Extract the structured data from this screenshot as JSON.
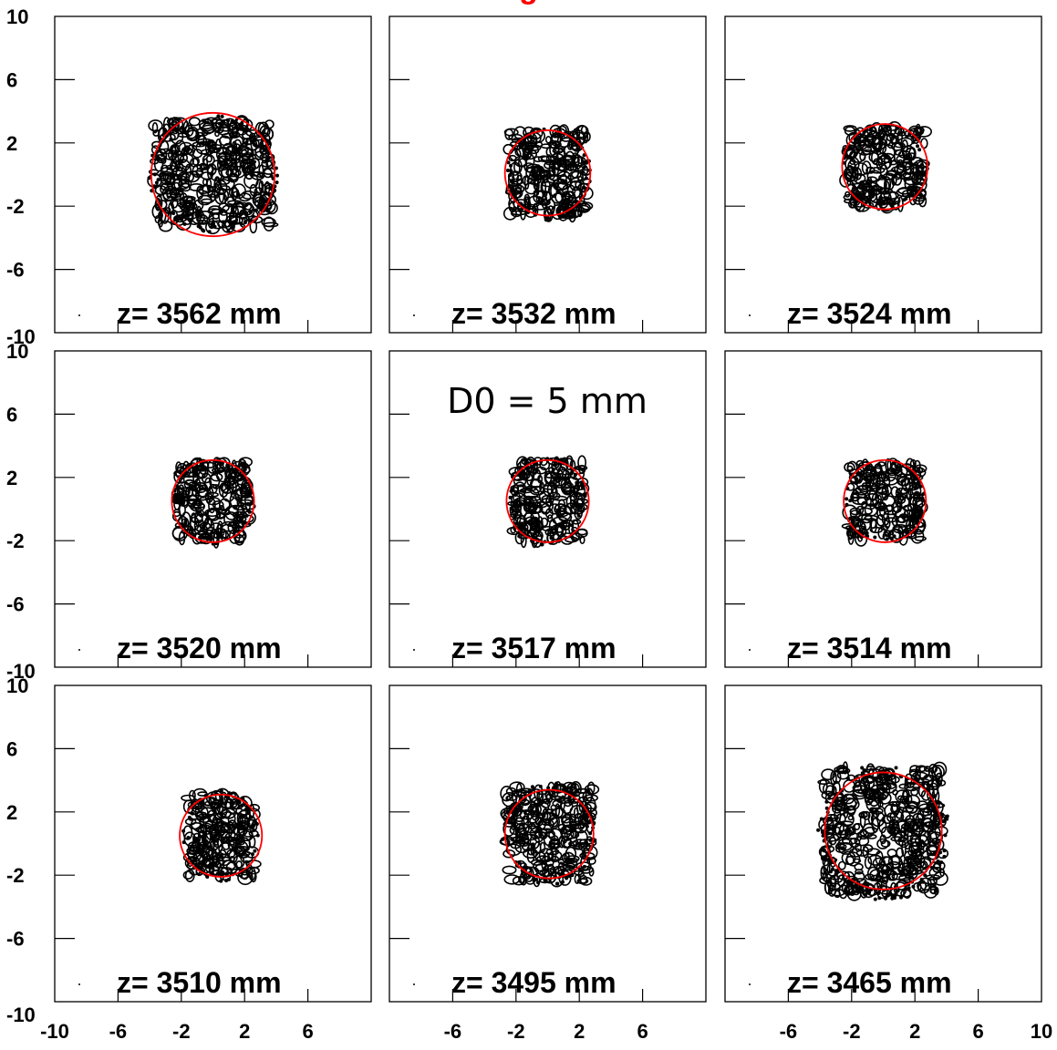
{
  "figure": {
    "title_visible_fragment": "g",
    "annotation": "D0 = 5 mm",
    "colors": {
      "contour": "#000000",
      "circle": "#ff0000",
      "title": "#ff0000",
      "frame": "#000000",
      "background": "#ffffff"
    }
  },
  "chart_data": {
    "type": "contour-grid",
    "grid": {
      "rows": 3,
      "cols": 3
    },
    "xlim": [
      -10,
      10
    ],
    "ylim": [
      -10,
      10
    ],
    "x_tick_labels": [
      "-10",
      "-6",
      "-2",
      "2",
      "6",
      "10"
    ],
    "y_tick_labels": [
      "10",
      "6",
      "2",
      "-2",
      "-6",
      "-10"
    ],
    "panels": [
      {
        "label": "z= 3562 mm",
        "circle": {
          "cx": 0.0,
          "cy": 0.0,
          "r": 3.9
        },
        "blob": {
          "w": 7.5,
          "h": 6.8
        }
      },
      {
        "label": "z= 3532 mm",
        "circle": {
          "cx": 0.0,
          "cy": 0.1,
          "r": 2.7
        },
        "blob": {
          "w": 5.0,
          "h": 5.4
        }
      },
      {
        "label": "z= 3524 mm",
        "circle": {
          "cx": 0.1,
          "cy": 0.5,
          "r": 2.7
        },
        "blob": {
          "w": 5.0,
          "h": 5.0
        }
      },
      {
        "label": "z= 3520 mm",
        "circle": {
          "cx": 0.0,
          "cy": 0.5,
          "r": 2.6
        },
        "blob": {
          "w": 4.6,
          "h": 5.0
        }
      },
      {
        "label": "z= 3517 mm",
        "circle": {
          "cx": 0.0,
          "cy": 0.5,
          "r": 2.6
        },
        "blob": {
          "w": 4.4,
          "h": 5.1
        }
      },
      {
        "label": "z= 3514 mm",
        "circle": {
          "cx": 0.1,
          "cy": 0.5,
          "r": 2.6
        },
        "blob": {
          "w": 4.6,
          "h": 4.9
        }
      },
      {
        "label": "z= 3510 mm",
        "circle": {
          "cx": 0.5,
          "cy": 0.5,
          "r": 2.6
        },
        "blob": {
          "w": 4.4,
          "h": 5.3
        }
      },
      {
        "label": "z= 3495 mm",
        "circle": {
          "cx": 0.1,
          "cy": 0.6,
          "r": 2.8
        },
        "blob": {
          "w": 5.4,
          "h": 6.0
        }
      },
      {
        "label": "z= 3465 mm",
        "circle": {
          "cx": 0.0,
          "cy": 0.8,
          "r": 3.7
        },
        "blob": {
          "w": 7.6,
          "h": 8.0
        }
      }
    ]
  }
}
